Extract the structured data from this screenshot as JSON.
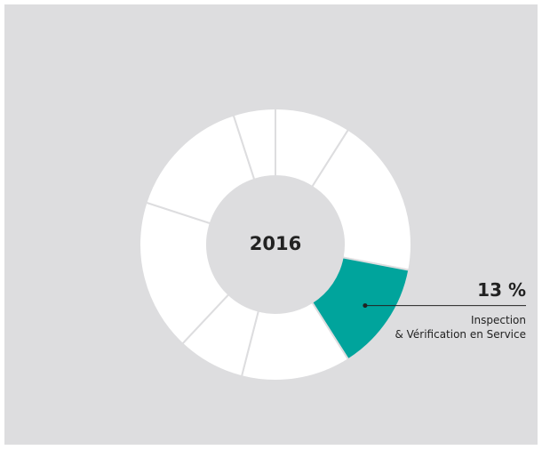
{
  "chart_data": {
    "type": "donut",
    "center_label": "2016",
    "categories": [
      null,
      null,
      "Inspection\n& Vérification en Service",
      null,
      null,
      null,
      null,
      null
    ],
    "values": [
      9,
      19,
      13,
      13,
      8,
      18,
      15,
      5
    ],
    "value_labels": [
      null,
      null,
      "13 %",
      null,
      null,
      null,
      null,
      null
    ],
    "colors": [
      "#ffffff",
      "#ffffff",
      "#00a49c",
      "#ffffff",
      "#ffffff",
      "#ffffff",
      "#ffffff",
      "#ffffff"
    ]
  }
}
